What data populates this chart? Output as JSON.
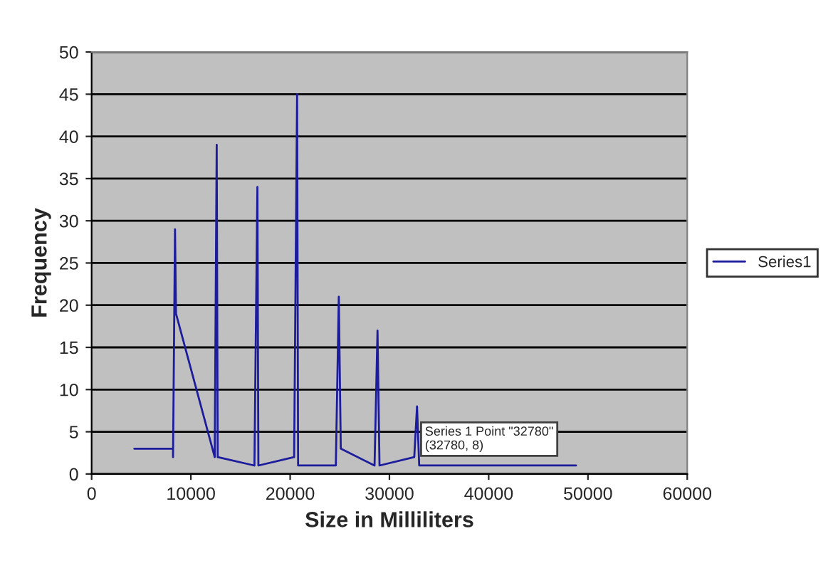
{
  "chart_data": {
    "type": "line",
    "xlabel": "Size in Milliliters",
    "ylabel": "Frequency",
    "xlim": [
      0,
      60000
    ],
    "xticks": [
      0,
      10000,
      20000,
      30000,
      40000,
      50000,
      60000
    ],
    "ylim": [
      0,
      50
    ],
    "yticks": [
      0,
      5,
      10,
      15,
      20,
      25,
      30,
      35,
      40,
      45,
      50
    ],
    "grid": "y",
    "legend": "right",
    "series": [
      {
        "name": "Series1",
        "color": "#1c1c9c",
        "x": [
          4300,
          8200,
          8200,
          8400,
          8500,
          12400,
          12600,
          12700,
          16400,
          16700,
          16800,
          20400,
          20700,
          20800,
          24600,
          24900,
          25100,
          28500,
          28800,
          29000,
          32500,
          32780,
          33000,
          48800
        ],
        "values": [
          3,
          3,
          2,
          29,
          19,
          2,
          39,
          2,
          1,
          34,
          1,
          2,
          45,
          1,
          1,
          21,
          3,
          1,
          17,
          1,
          2,
          8,
          1,
          1
        ]
      }
    ],
    "annotations": [
      {
        "text": "Series 1 Point \"32780\"\n(32780, 8)",
        "x": 32780,
        "y": 8
      }
    ]
  }
}
